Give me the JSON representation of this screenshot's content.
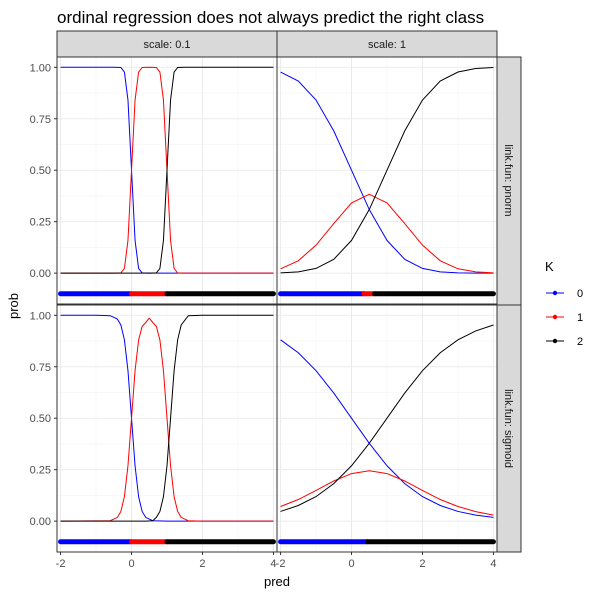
{
  "chart_data": {
    "type": "line",
    "title": "ordinal regression does not always predict the right class",
    "xlabel": "pred",
    "ylabel": "prob",
    "xlim": [
      -2.1,
      4.1
    ],
    "ylim": [
      -0.15,
      1.05
    ],
    "x_ticks": [
      -2,
      0,
      2,
      4
    ],
    "x_tick_labels": [
      "-2",
      "0",
      "2",
      "4"
    ],
    "y_ticks": [
      0,
      0.25,
      0.5,
      0.75,
      1
    ],
    "y_tick_labels": [
      "0.00",
      "0.25",
      "0.50",
      "0.75",
      "1.00"
    ],
    "grid": true,
    "facet_cols": [
      "scale: 0.1",
      "scale: 1"
    ],
    "facet_rows": [
      "link.fun: pnorm",
      "link.fun: sigmoid"
    ],
    "legend": {
      "title": "K",
      "placement": "right",
      "entries": [
        {
          "label": "0",
          "color": "#0000ff"
        },
        {
          "label": "1",
          "color": "#ff0000"
        },
        {
          "label": "2",
          "color": "#000000"
        }
      ]
    },
    "thresholds": [
      0,
      1
    ],
    "class_strip_y": -0.1,
    "x_range": [
      -2,
      4
    ],
    "panels": [
      {
        "col": "scale: 0.1",
        "row": "link.fun: pnorm",
        "series": [
          {
            "name": "0",
            "color": "#0000ff",
            "x": [
              -2,
              -1,
              -0.5,
              -0.3,
              -0.2,
              -0.1,
              0,
              0.1,
              0.2,
              0.3,
              0.5,
              1,
              2,
              3,
              4
            ],
            "y": [
              1,
              1,
              1,
              0.999,
              0.977,
              0.841,
              0.5,
              0.159,
              0.023,
              0.001,
              0,
              0,
              0,
              0,
              0
            ]
          },
          {
            "name": "1",
            "color": "#ff0000",
            "x": [
              -2,
              -0.5,
              -0.3,
              -0.2,
              -0.1,
              0,
              0.1,
              0.2,
              0.3,
              0.5,
              0.7,
              0.8,
              0.9,
              1,
              1.1,
              1.2,
              1.3,
              1.5,
              2,
              3,
              4
            ],
            "y": [
              0,
              0,
              0.001,
              0.023,
              0.159,
              0.5,
              0.841,
              0.977,
              0.999,
              1,
              0.999,
              0.977,
              0.841,
              0.5,
              0.159,
              0.023,
              0.001,
              0,
              0,
              0,
              0
            ]
          },
          {
            "name": "2",
            "color": "#000000",
            "x": [
              -2,
              -1,
              0,
              0.5,
              0.7,
              0.8,
              0.9,
              1,
              1.1,
              1.2,
              1.3,
              1.5,
              2,
              3,
              4
            ],
            "y": [
              0,
              0,
              0,
              0,
              0.001,
              0.023,
              0.159,
              0.5,
              0.841,
              0.977,
              0.999,
              1,
              1,
              1,
              1
            ]
          }
        ],
        "class_segments": [
          {
            "from": -2,
            "to": 0,
            "class": "0",
            "color": "#0000ff"
          },
          {
            "from": 0,
            "to": 1,
            "class": "1",
            "color": "#ff0000"
          },
          {
            "from": 1,
            "to": 4,
            "class": "2",
            "color": "#000000"
          }
        ]
      },
      {
        "col": "scale: 1",
        "row": "link.fun: pnorm",
        "series": [
          {
            "name": "0",
            "color": "#0000ff",
            "x": [
              -2,
              -1.5,
              -1,
              -0.5,
              0,
              0.5,
              1,
              1.5,
              2,
              2.5,
              3,
              3.5,
              4
            ],
            "y": [
              0.977,
              0.933,
              0.841,
              0.691,
              0.5,
              0.309,
              0.159,
              0.067,
              0.023,
              0.006,
              0.001,
              0,
              0
            ]
          },
          {
            "name": "1",
            "color": "#ff0000",
            "x": [
              -2,
              -1.5,
              -1,
              -0.5,
              0,
              0.5,
              1,
              1.5,
              2,
              2.5,
              3,
              3.5,
              4
            ],
            "y": [
              0.021,
              0.06,
              0.136,
              0.241,
              0.341,
              0.383,
              0.341,
              0.241,
              0.136,
              0.06,
              0.021,
              0.006,
              0.001
            ]
          },
          {
            "name": "2",
            "color": "#000000",
            "x": [
              -2,
              -1.5,
              -1,
              -0.5,
              0,
              0.5,
              1,
              1.5,
              2,
              2.5,
              3,
              3.5,
              4
            ],
            "y": [
              0.001,
              0.006,
              0.023,
              0.067,
              0.159,
              0.309,
              0.5,
              0.691,
              0.841,
              0.933,
              0.977,
              0.994,
              0.999
            ]
          }
        ],
        "class_segments": [
          {
            "from": -2,
            "to": 0.35,
            "class": "0",
            "color": "#0000ff"
          },
          {
            "from": 0.35,
            "to": 0.65,
            "class": "1",
            "color": "#ff0000"
          },
          {
            "from": 0.65,
            "to": 4,
            "class": "2",
            "color": "#000000"
          }
        ]
      },
      {
        "col": "scale: 0.1",
        "row": "link.fun: sigmoid",
        "series": [
          {
            "name": "0",
            "color": "#0000ff",
            "x": [
              -2,
              -1,
              -0.6,
              -0.4,
              -0.3,
              -0.2,
              -0.1,
              0,
              0.1,
              0.2,
              0.3,
              0.4,
              0.6,
              1,
              2,
              3,
              4
            ],
            "y": [
              1,
              1,
              0.998,
              0.982,
              0.953,
              0.881,
              0.731,
              0.5,
              0.269,
              0.119,
              0.047,
              0.018,
              0.002,
              0,
              0,
              0,
              0
            ]
          },
          {
            "name": "1",
            "color": "#ff0000",
            "x": [
              -2,
              -0.6,
              -0.4,
              -0.3,
              -0.2,
              -0.1,
              0,
              0.1,
              0.2,
              0.3,
              0.4,
              0.5,
              0.6,
              0.7,
              0.8,
              0.9,
              1,
              1.1,
              1.2,
              1.3,
              1.4,
              1.6,
              2,
              3,
              4
            ],
            "y": [
              0,
              0.002,
              0.018,
              0.047,
              0.119,
              0.269,
              0.5,
              0.731,
              0.88,
              0.946,
              0.965,
              0.986,
              0.965,
              0.946,
              0.88,
              0.731,
              0.5,
              0.269,
              0.119,
              0.047,
              0.018,
              0.002,
              0,
              0,
              0
            ]
          },
          {
            "name": "2",
            "color": "#000000",
            "x": [
              -2,
              -1,
              0,
              0.4,
              0.6,
              0.7,
              0.8,
              0.9,
              1,
              1.1,
              1.2,
              1.3,
              1.4,
              1.6,
              2,
              3,
              4
            ],
            "y": [
              0,
              0,
              0,
              0,
              0.002,
              0.018,
              0.047,
              0.119,
              0.269,
              0.5,
              0.731,
              0.881,
              0.953,
              0.998,
              1,
              1,
              1
            ]
          }
        ],
        "class_segments": [
          {
            "from": -2,
            "to": 0,
            "class": "0",
            "color": "#0000ff"
          },
          {
            "from": 0,
            "to": 1,
            "class": "1",
            "color": "#ff0000"
          },
          {
            "from": 1,
            "to": 4,
            "class": "2",
            "color": "#000000"
          }
        ]
      },
      {
        "col": "scale: 1",
        "row": "link.fun: sigmoid",
        "series": [
          {
            "name": "0",
            "color": "#0000ff",
            "x": [
              -2,
              -1.5,
              -1,
              -0.5,
              0,
              0.5,
              1,
              1.5,
              2,
              2.5,
              3,
              3.5,
              4
            ],
            "y": [
              0.881,
              0.818,
              0.731,
              0.622,
              0.5,
              0.378,
              0.269,
              0.182,
              0.119,
              0.076,
              0.047,
              0.029,
              0.018
            ]
          },
          {
            "name": "1",
            "color": "#ff0000",
            "x": [
              -2,
              -1.5,
              -1,
              -0.5,
              0,
              0.5,
              1,
              1.5,
              2,
              2.5,
              3,
              3.5,
              4
            ],
            "y": [
              0.071,
              0.105,
              0.149,
              0.195,
              0.231,
              0.245,
              0.231,
              0.195,
              0.149,
              0.105,
              0.071,
              0.046,
              0.029
            ]
          },
          {
            "name": "2",
            "color": "#000000",
            "x": [
              -2,
              -1.5,
              -1,
              -0.5,
              0,
              0.5,
              1,
              1.5,
              2,
              2.5,
              3,
              3.5,
              4
            ],
            "y": [
              0.047,
              0.076,
              0.119,
              0.182,
              0.269,
              0.378,
              0.5,
              0.622,
              0.731,
              0.818,
              0.881,
              0.924,
              0.953
            ]
          }
        ],
        "class_segments": [
          {
            "from": -2,
            "to": 0.45,
            "class": "0",
            "color": "#0000ff"
          },
          {
            "from": 0.45,
            "to": 4,
            "class": "2",
            "color": "#000000"
          }
        ]
      }
    ]
  }
}
